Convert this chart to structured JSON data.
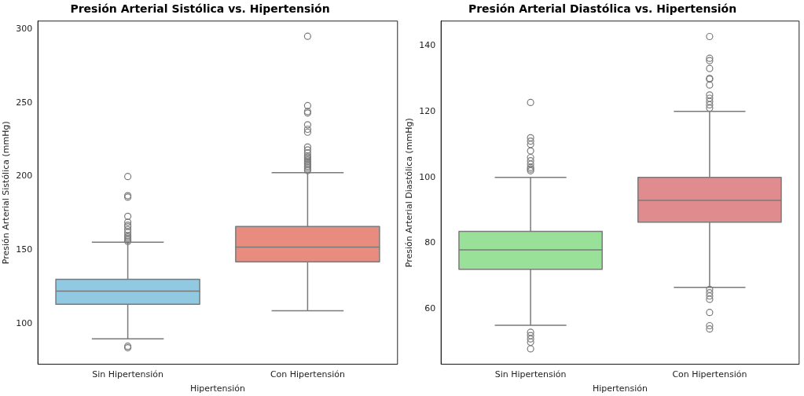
{
  "chart_data": [
    {
      "type": "box",
      "title": "Presión Arterial Sistólica vs. Hipertensión",
      "xlabel": "Hipertensión",
      "ylabel": "Presión Arterial Sistólica (mmHg)",
      "categories": [
        "Sin Hipertensión",
        "Con Hipertensión"
      ],
      "colors": [
        "#90c9e1",
        "#e88c80"
      ],
      "ylim": [
        72.8,
        305.3
      ],
      "yticks": [
        100,
        150,
        200,
        250,
        300
      ],
      "grid": false,
      "legend": false,
      "boxes": [
        {
          "low": 90,
          "q1": 113.4,
          "median": 122.3,
          "q3": 130.4,
          "high": 155.5,
          "outliers": [
            84,
            85,
            156,
            157,
            158,
            159,
            160,
            162,
            164,
            166,
            167,
            169,
            173,
            186,
            187,
            200
          ]
        },
        {
          "low": 109,
          "q1": 142.2,
          "median": 152.1,
          "q3": 166.2,
          "high": 202.6,
          "outliers": [
            204,
            205,
            206,
            207,
            208,
            209,
            210,
            211,
            212,
            213,
            214,
            216,
            218,
            220,
            230,
            232,
            235,
            243,
            244,
            248,
            295
          ]
        }
      ]
    },
    {
      "type": "box",
      "title": "Presión Arterial Diastólica vs. Hipertensión",
      "xlabel": "Hipertensión",
      "ylabel": "Presión Arterial Diastólica (mmHg)",
      "categories": [
        "Sin Hipertensión",
        "Con Hipertensión"
      ],
      "colors": [
        "#99e098",
        "#e08c8e"
      ],
      "ylim": [
        43.3,
        147.4
      ],
      "yticks": [
        60,
        80,
        100,
        120,
        140
      ],
      "grid": false,
      "legend": false,
      "boxes": [
        {
          "low": 55.1,
          "q1": 72.1,
          "median": 78,
          "q3": 83.6,
          "high": 100,
          "outliers": [
            48,
            50,
            51,
            52,
            53,
            102,
            102.5,
            103,
            104,
            105,
            106,
            108,
            110,
            111,
            112,
            122.7
          ]
        },
        {
          "low": 66.6,
          "q1": 86.4,
          "median": 93,
          "q3": 100,
          "high": 120,
          "outliers": [
            54,
            55,
            59,
            63,
            64,
            65,
            66,
            121,
            122,
            123,
            124,
            125,
            128,
            129.8,
            130,
            133,
            135.4,
            136.1,
            142.7
          ]
        }
      ]
    }
  ]
}
